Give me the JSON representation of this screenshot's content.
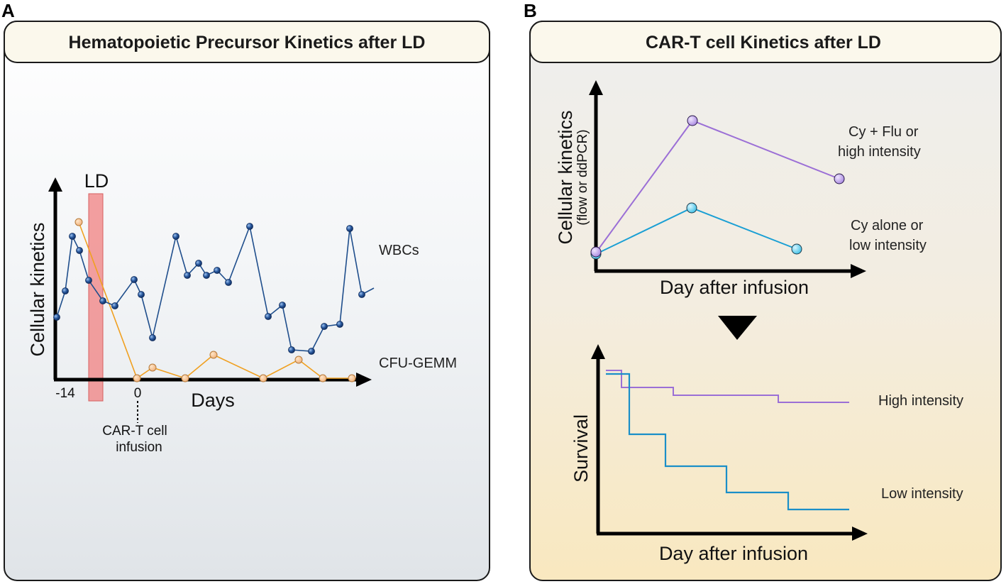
{
  "panel_a": {
    "letter": "A",
    "title": "Hematopoietic Precursor Kinetics after LD",
    "y_label": "Cellular kinetics",
    "x_label": "Days",
    "tick_start": "-14",
    "tick_zero": "0",
    "ld_label": "LD",
    "infusion_label_line1": "CAR-T cell",
    "infusion_label_line2": "infusion",
    "series_wbc_label": "WBCs",
    "series_cfu_label": "CFU-GEMM"
  },
  "panel_b": {
    "letter": "B",
    "title": "CAR-T cell Kinetics after LD",
    "top_y_label": "Cellular kinetics",
    "top_y_sublabel": "(flow or ddPCR)",
    "top_x_label": "Day after infusion",
    "series_high_line1": "Cy + Flu or",
    "series_high_line2": "high intensity",
    "series_low_line1": "Cy alone or",
    "series_low_line2": "low intensity",
    "bottom_y_label": "Survival",
    "bottom_x_label": "Day after infusion",
    "survival_high_label": "High intensity",
    "survival_low_label": "Low intensity"
  },
  "colors": {
    "wbc": "#1f4e8c",
    "cfu": "#f0a020",
    "high": "#9b6fd6",
    "low": "#1a9fd4",
    "survival_low": "#1a8fc8",
    "ld_band": "#f08080"
  }
}
